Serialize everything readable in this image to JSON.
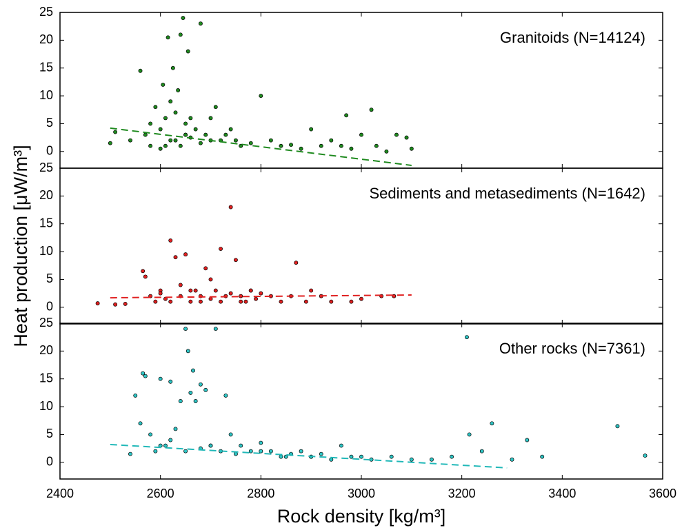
{
  "chart_data": [
    {
      "type": "scatter",
      "label": "Granitoids (N=14124)",
      "color": "#1f8a1f",
      "trend_color": "#1f8a1f",
      "x": [
        2500,
        2510,
        2540,
        2560,
        2570,
        2580,
        2590,
        2600,
        2605,
        2610,
        2615,
        2620,
        2625,
        2630,
        2635,
        2640,
        2645,
        2650,
        2655,
        2660,
        2670,
        2680,
        2690,
        2700,
        2710,
        2720,
        2730,
        2740,
        2750,
        2760,
        2780,
        2800,
        2820,
        2840,
        2860,
        2880,
        2900,
        2920,
        2940,
        2960,
        2970,
        2980,
        3000,
        3020,
        3030,
        3050,
        3070,
        3090,
        3100,
        2620,
        2640,
        2650,
        2660,
        2680,
        2700,
        2580,
        2600,
        2610,
        2630,
        2650
      ],
      "values": [
        1.5,
        3.5,
        2.0,
        14.5,
        3,
        5,
        8,
        4,
        12,
        6,
        20.5,
        9,
        15,
        7,
        11,
        21,
        24,
        5,
        18,
        6,
        4,
        23,
        3,
        6,
        8,
        2,
        3,
        4,
        2,
        1,
        1.5,
        10,
        2,
        1,
        1.2,
        0.5,
        4,
        1,
        2,
        1,
        6.5,
        0.5,
        3,
        7.5,
        1,
        0,
        3,
        2.5,
        0.5,
        2,
        1,
        3,
        2.5,
        1.5,
        2,
        1,
        0.5,
        1,
        2,
        3
      ],
      "trend": {
        "x": [
          2500,
          3100
        ],
        "values": [
          4.2,
          -2.5
        ]
      },
      "xlim": [
        2400,
        3600
      ],
      "xticks": [
        2400,
        2600,
        2800,
        3000,
        3200,
        3400,
        3600
      ],
      "ylim": [
        -3,
        25
      ],
      "yticks": [
        0,
        5,
        10,
        15,
        20,
        25
      ]
    },
    {
      "type": "scatter",
      "label": "Sediments and metasediments (N=1642)",
      "color": "#e02020",
      "trend_color": "#e02020",
      "ylabel": "Heat production [μW/m³]",
      "x": [
        2475,
        2510,
        2530,
        2565,
        2570,
        2580,
        2590,
        2600,
        2610,
        2620,
        2630,
        2640,
        2650,
        2660,
        2670,
        2680,
        2690,
        2700,
        2710,
        2720,
        2730,
        2740,
        2750,
        2760,
        2770,
        2780,
        2790,
        2800,
        2820,
        2840,
        2860,
        2870,
        2890,
        2900,
        2920,
        2940,
        2980,
        3000,
        3040,
        3065,
        2600,
        2620,
        2640,
        2660,
        2680,
        2700,
        2720,
        2740,
        2760,
        2780
      ],
      "values": [
        0.7,
        0.5,
        0.6,
        6.5,
        5.5,
        2,
        1,
        3,
        1.5,
        12,
        9,
        2,
        9.5,
        1,
        3,
        2,
        7,
        1.5,
        3,
        10.5,
        2,
        18,
        8.5,
        2,
        1,
        3,
        1.5,
        2.5,
        2,
        1,
        2,
        8,
        1,
        3,
        2,
        1,
        1,
        1.5,
        2,
        2,
        2.5,
        1,
        4,
        3,
        1,
        5,
        1,
        2.5,
        1,
        3
      ],
      "trend": {
        "x": [
          2500,
          3100
        ],
        "values": [
          1.7,
          2.2
        ]
      },
      "xlim": [
        2400,
        3600
      ],
      "xticks": [
        2400,
        2600,
        2800,
        3000,
        3200,
        3400,
        3600
      ],
      "ylim": [
        -3,
        25
      ],
      "yticks": [
        0,
        5,
        10,
        15,
        20,
        25
      ]
    },
    {
      "type": "scatter",
      "label": "Other rocks (N=7361)",
      "color": "#2ec4c4",
      "trend_color": "#20b8b8",
      "xlabel": "Rock density [kg/m³]",
      "x": [
        2540,
        2550,
        2560,
        2565,
        2570,
        2580,
        2590,
        2600,
        2610,
        2620,
        2630,
        2640,
        2650,
        2655,
        2660,
        2665,
        2670,
        2680,
        2690,
        2700,
        2710,
        2720,
        2730,
        2740,
        2760,
        2780,
        2800,
        2820,
        2840,
        2860,
        2880,
        2900,
        2920,
        2940,
        2960,
        2980,
        3000,
        3020,
        3060,
        3100,
        3140,
        3180,
        3210,
        3215,
        3240,
        3260,
        3300,
        3330,
        3360,
        3510,
        3565,
        2600,
        2620,
        2650,
        2680,
        2700,
        2750,
        2800,
        2850,
        2900
      ],
      "values": [
        1.5,
        12,
        7,
        16,
        15.5,
        5,
        2,
        15,
        3,
        14.5,
        6,
        11,
        24,
        20,
        12.5,
        16.5,
        11,
        14,
        13,
        3,
        24,
        2,
        12,
        5,
        3,
        2,
        3.5,
        2,
        1,
        1.5,
        2,
        1,
        1.5,
        0.5,
        3,
        1,
        1,
        0.5,
        1,
        0.5,
        0.5,
        1,
        22.5,
        5,
        2,
        7,
        0.5,
        4,
        1,
        6.5,
        1.2,
        3,
        4,
        2,
        2.5,
        3,
        1.5,
        2,
        1,
        1
      ],
      "trend": {
        "x": [
          2500,
          3290
        ],
        "values": [
          3.2,
          -1
        ]
      },
      "xlim": [
        2400,
        3600
      ],
      "xticks": [
        2400,
        2600,
        2800,
        3000,
        3200,
        3400,
        3600
      ],
      "ylim": [
        -3,
        25
      ],
      "yticks": [
        0,
        5,
        10,
        15,
        20,
        25
      ]
    }
  ]
}
